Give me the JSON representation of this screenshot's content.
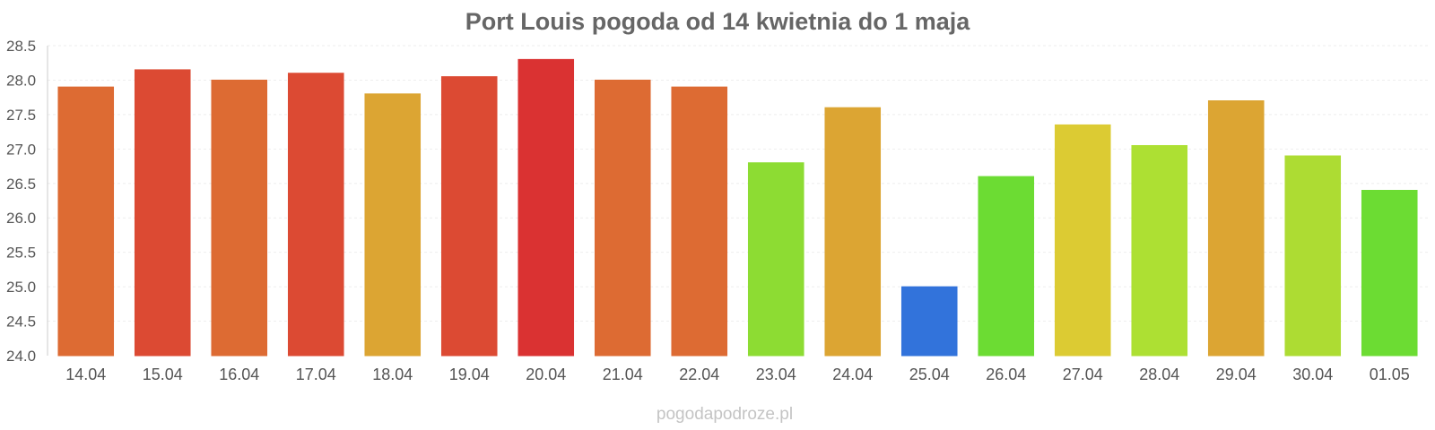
{
  "chart_data": {
    "type": "bar",
    "title": "Port Louis pogoda od 14 kwietnia do 1 maja",
    "xlabel": "",
    "ylabel": "",
    "categories": [
      "14.04",
      "15.04",
      "16.04",
      "17.04",
      "18.04",
      "19.04",
      "20.04",
      "21.04",
      "22.04",
      "23.04",
      "24.04",
      "25.04",
      "26.04",
      "27.04",
      "28.04",
      "29.04",
      "30.04",
      "01.05"
    ],
    "values": [
      27.9,
      28.15,
      28.0,
      28.1,
      27.8,
      28.05,
      28.3,
      28.0,
      27.9,
      26.8,
      27.6,
      25.0,
      26.6,
      27.35,
      27.05,
      27.7,
      26.9,
      26.4
    ],
    "bar_colors": [
      "#dd6b33",
      "#dc4a33",
      "#dd6b33",
      "#dc4a33",
      "#dca533",
      "#dc4a33",
      "#da3232",
      "#dd6b33",
      "#dd6b33",
      "#8ddc33",
      "#dca533",
      "#3273db",
      "#6cdc33",
      "#dccb33",
      "#ade033",
      "#dca533",
      "#addc33",
      "#6cdc33"
    ],
    "ylim": [
      24.0,
      28.5
    ],
    "yticks": [
      "24.0",
      "24.5",
      "25.0",
      "25.5",
      "26.0",
      "26.5",
      "27.0",
      "27.5",
      "28.0",
      "28.5"
    ],
    "grid": true,
    "legend": "none"
  },
  "watermark": "pogodapodroze.pl"
}
